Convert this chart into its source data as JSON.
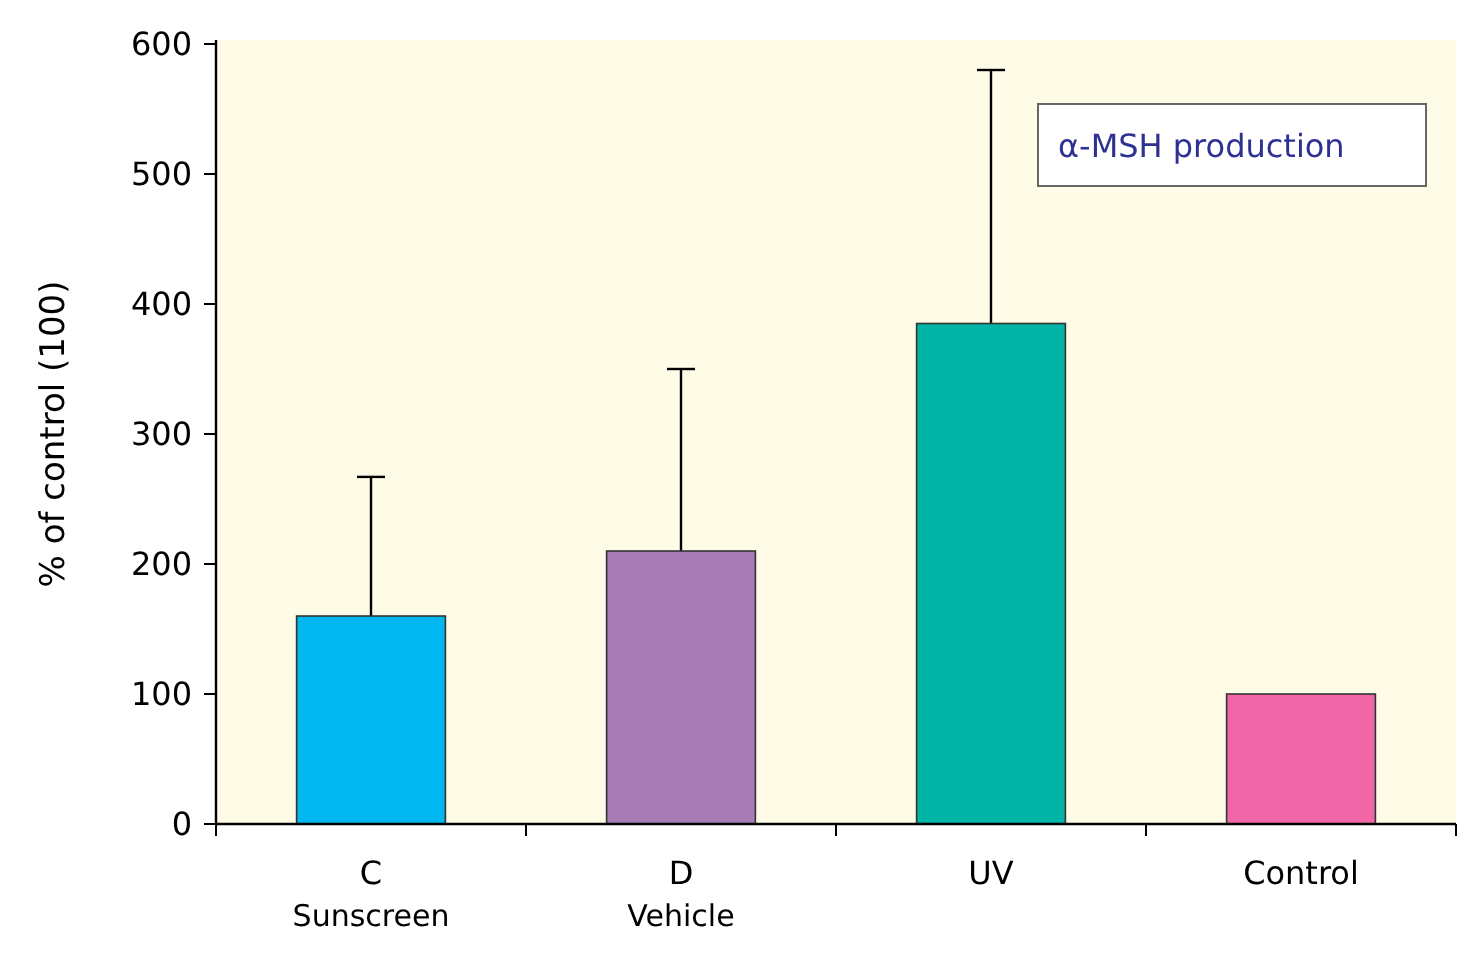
{
  "chart_data": {
    "type": "bar",
    "ylabel": "% of control (100)",
    "categories": [
      "C\nSunscreen",
      "D\nVehicle",
      "UV",
      "Control"
    ],
    "values": [
      160,
      210,
      385,
      100
    ],
    "colors": [
      "#00b7ef",
      "#a77bb5",
      "#00b5a5",
      "#f066a6"
    ],
    "errors": [
      [
        160,
        267
      ],
      [
        210,
        350
      ],
      [
        385,
        580
      ],
      null
    ],
    "ylim": [
      0,
      600
    ],
    "yticks": [
      0,
      100,
      200,
      300,
      400,
      500,
      600
    ],
    "annotations": [
      "α-MSH production"
    ],
    "grid": false
  }
}
